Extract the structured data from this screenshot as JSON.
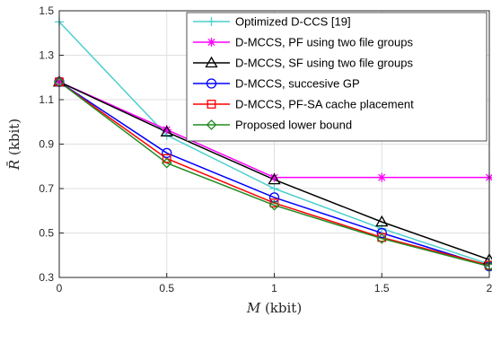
{
  "chart_data": {
    "type": "line",
    "xlabel_symbol": "M",
    "xlabel_unit": "(kbit)",
    "ylabel_symbol": "R̄",
    "ylabel_unit": "(kbit)",
    "xlim": [
      0,
      2
    ],
    "ylim": [
      0.3,
      1.5
    ],
    "xticks": [
      0,
      0.5,
      1,
      1.5,
      2
    ],
    "xtick_labels": [
      "0",
      "0.5",
      "1",
      "1.5",
      "2"
    ],
    "yticks": [
      0.3,
      0.5,
      0.7,
      0.9,
      1.1,
      1.3,
      1.5
    ],
    "ytick_labels": [
      "0.3",
      "0.5",
      "0.7",
      "0.9",
      "1.1",
      "1.3",
      "1.5"
    ],
    "grid": true,
    "legend_position": "top-right",
    "x": [
      0,
      0.5,
      1,
      1.5,
      2
    ],
    "series": [
      {
        "name": "Optimized D-CCS [19]",
        "color": "#4DCFCF",
        "marker": "plus",
        "values": [
          1.45,
          0.94,
          0.7,
          0.52,
          0.36
        ]
      },
      {
        "name": "D-MCCS, PF using two file groups",
        "color": "#FF00FF",
        "marker": "star",
        "values": [
          1.18,
          0.965,
          0.75,
          0.75,
          0.75
        ]
      },
      {
        "name": "D-MCCS, SF using two file groups",
        "color": "#000000",
        "marker": "triangle",
        "values": [
          1.18,
          0.955,
          0.74,
          0.55,
          0.38
        ]
      },
      {
        "name": "D-MCCS, succesive GP",
        "color": "#0000FF",
        "marker": "circle",
        "values": [
          1.18,
          0.86,
          0.66,
          0.5,
          0.35
        ]
      },
      {
        "name": "D-MCCS, PF-SA cache placement",
        "color": "#FF0000",
        "marker": "square",
        "values": [
          1.18,
          0.835,
          0.635,
          0.48,
          0.355
        ]
      },
      {
        "name": "Proposed lower bound",
        "color": "#228B22",
        "marker": "diamond",
        "values": [
          1.18,
          0.815,
          0.625,
          0.475,
          0.35
        ]
      }
    ]
  }
}
